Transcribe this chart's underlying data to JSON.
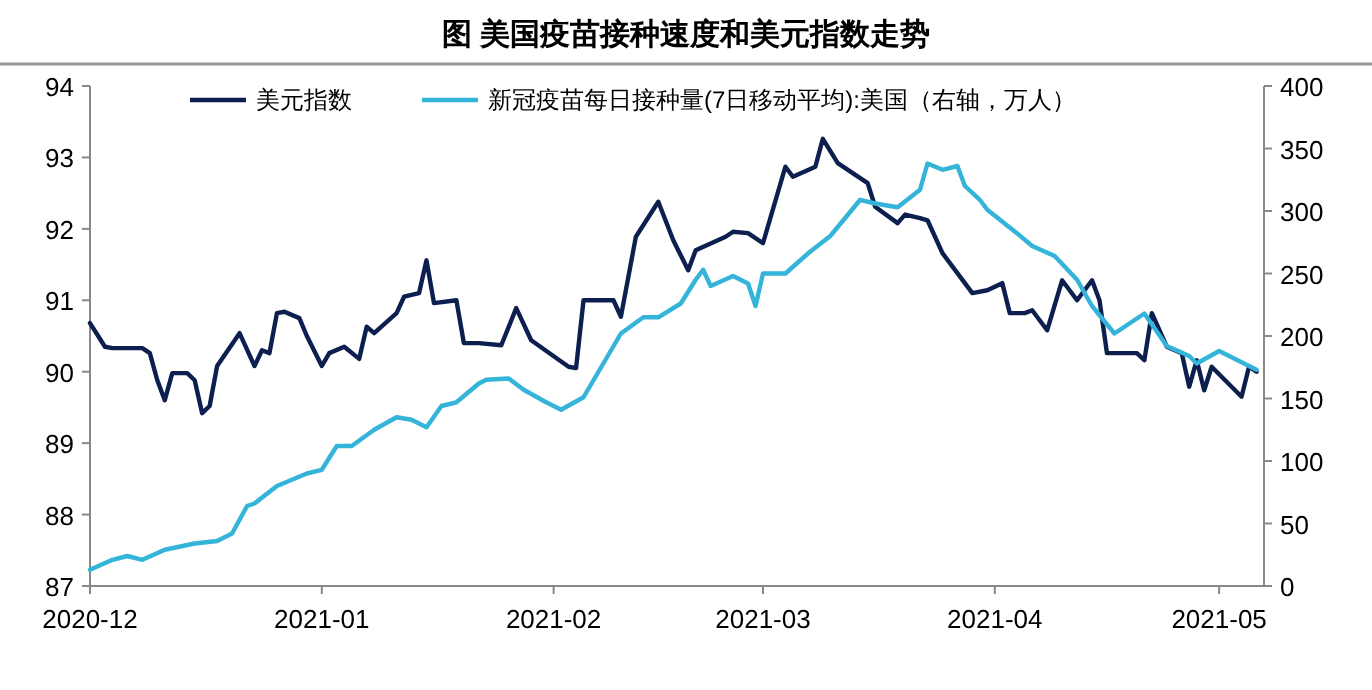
{
  "chart_data": {
    "type": "line",
    "title": "图  美国疫苗接种速度和美元指数走势",
    "xlim": [
      "2020-12-01",
      "2021-05-07"
    ],
    "xticks": [
      {
        "value": "2020-12-01",
        "label": "2020-12"
      },
      {
        "value": "2021-01-01",
        "label": "2021-01"
      },
      {
        "value": "2021-02-01",
        "label": "2021-02"
      },
      {
        "value": "2021-03-01",
        "label": "2021-03"
      },
      {
        "value": "2021-04-01",
        "label": "2021-04"
      },
      {
        "value": "2021-05-01",
        "label": "2021-05"
      }
    ],
    "ylim": [
      87,
      94
    ],
    "yticks": [
      87,
      88,
      89,
      90,
      91,
      92,
      93,
      94
    ],
    "y2lim": [
      0,
      400
    ],
    "y2ticks": [
      0,
      50,
      100,
      150,
      200,
      250,
      300,
      350,
      400
    ],
    "grid": false,
    "legend": "top",
    "series": [
      {
        "name": "美元指数",
        "color": "#0c1f4f",
        "x": [
          "2020-12-01",
          "2020-12-03",
          "2020-12-04",
          "2020-12-08",
          "2020-12-09",
          "2020-12-10",
          "2020-12-11",
          "2020-12-12",
          "2020-12-14",
          "2020-12-15",
          "2020-12-16",
          "2020-12-17",
          "2020-12-18",
          "2020-12-21",
          "2020-12-23",
          "2020-12-24",
          "2020-12-25",
          "2020-12-26",
          "2020-12-27",
          "2020-12-29",
          "2020-12-30",
          "2021-01-01",
          "2021-01-02",
          "2021-01-04",
          "2021-01-06",
          "2021-01-07",
          "2021-01-08",
          "2021-01-11",
          "2021-01-12",
          "2021-01-14",
          "2021-01-15",
          "2021-01-16",
          "2021-01-19",
          "2021-01-20",
          "2021-01-22",
          "2021-01-25",
          "2021-01-27",
          "2021-01-29",
          "2021-02-03",
          "2021-02-04",
          "2021-02-05",
          "2021-02-09",
          "2021-02-10",
          "2021-02-12",
          "2021-02-15",
          "2021-02-17",
          "2021-02-19",
          "2021-02-20",
          "2021-02-24",
          "2021-02-25",
          "2021-02-27",
          "2021-03-01",
          "2021-03-04",
          "2021-03-05",
          "2021-03-08",
          "2021-03-09",
          "2021-03-11",
          "2021-03-15",
          "2021-03-16",
          "2021-03-19",
          "2021-03-20",
          "2021-03-22",
          "2021-03-23",
          "2021-03-25",
          "2021-03-29",
          "2021-03-31",
          "2021-04-02",
          "2021-04-03",
          "2021-04-05",
          "2021-04-06",
          "2021-04-08",
          "2021-04-10",
          "2021-04-12",
          "2021-04-14",
          "2021-04-15",
          "2021-04-16",
          "2021-04-20",
          "2021-04-21",
          "2021-04-22",
          "2021-04-24",
          "2021-04-26",
          "2021-04-27",
          "2021-04-28",
          "2021-04-29",
          "2021-04-30",
          "2021-05-04",
          "2021-05-05",
          "2021-05-06"
        ],
        "values": [
          90.68,
          90.35,
          90.33,
          90.33,
          90.26,
          89.88,
          89.6,
          89.98,
          89.98,
          89.88,
          89.42,
          89.52,
          90.08,
          90.54,
          90.08,
          90.3,
          90.26,
          90.82,
          90.84,
          90.75,
          90.5,
          90.08,
          90.26,
          90.35,
          90.18,
          90.63,
          90.54,
          90.82,
          91.05,
          91.1,
          91.56,
          90.96,
          91.0,
          90.4,
          90.4,
          90.37,
          90.89,
          90.44,
          90.07,
          90.05,
          91.0,
          91.0,
          90.77,
          91.89,
          92.38,
          91.84,
          91.42,
          91.7,
          91.89,
          91.96,
          91.94,
          91.8,
          92.87,
          92.73,
          92.87,
          93.26,
          92.92,
          92.64,
          92.31,
          92.08,
          92.2,
          92.15,
          92.12,
          91.66,
          91.1,
          91.14,
          91.24,
          90.82,
          90.82,
          90.86,
          90.58,
          91.28,
          91.0,
          91.28,
          91.0,
          90.26,
          90.26,
          90.16,
          90.82,
          90.35,
          90.26,
          89.79,
          90.16,
          89.74,
          90.07,
          89.65,
          90.07,
          90.0
        ]
      },
      {
        "name": "新冠疫苗每日接种量(7日移动平均):美国（右轴，万人）",
        "axis": "y2",
        "color": "#33b4d8",
        "x": [
          "2020-12-01",
          "2020-12-04",
          "2020-12-06",
          "2020-12-08",
          "2020-12-11",
          "2020-12-15",
          "2020-12-18",
          "2020-12-20",
          "2020-12-22",
          "2020-12-23",
          "2020-12-26",
          "2020-12-28",
          "2020-12-30",
          "2021-01-01",
          "2021-01-03",
          "2021-01-05",
          "2021-01-08",
          "2021-01-11",
          "2021-01-13",
          "2021-01-15",
          "2021-01-17",
          "2021-01-19",
          "2021-01-22",
          "2021-01-23",
          "2021-01-26",
          "2021-01-28",
          "2021-01-31",
          "2021-02-02",
          "2021-02-05",
          "2021-02-10",
          "2021-02-13",
          "2021-02-15",
          "2021-02-18",
          "2021-02-20",
          "2021-02-21",
          "2021-02-22",
          "2021-02-25",
          "2021-02-27",
          "2021-02-28",
          "2021-03-01",
          "2021-03-04",
          "2021-03-07",
          "2021-03-10",
          "2021-03-14",
          "2021-03-16",
          "2021-03-19",
          "2021-03-22",
          "2021-03-23",
          "2021-03-25",
          "2021-03-27",
          "2021-03-28",
          "2021-03-30",
          "2021-03-31",
          "2021-04-04",
          "2021-04-06",
          "2021-04-09",
          "2021-04-12",
          "2021-04-14",
          "2021-04-17",
          "2021-04-19",
          "2021-04-21",
          "2021-04-24",
          "2021-04-27",
          "2021-04-28",
          "2021-05-01",
          "2021-05-05",
          "2021-05-06"
        ],
        "values": [
          13,
          21,
          24,
          21,
          29,
          34,
          36,
          42,
          64,
          66,
          80,
          85,
          90,
          93,
          112,
          112,
          125,
          135,
          133,
          127,
          144,
          147,
          162,
          165,
          166,
          157,
          147,
          141,
          151,
          202,
          215,
          215,
          226,
          245,
          253,
          240,
          248,
          242,
          224,
          250,
          250,
          266,
          280,
          309,
          306,
          303,
          317,
          338,
          333,
          336,
          320,
          309,
          301,
          282,
          272,
          264,
          245,
          224,
          202,
          210,
          218,
          192,
          184,
          178,
          188,
          176,
          173
        ]
      }
    ]
  }
}
